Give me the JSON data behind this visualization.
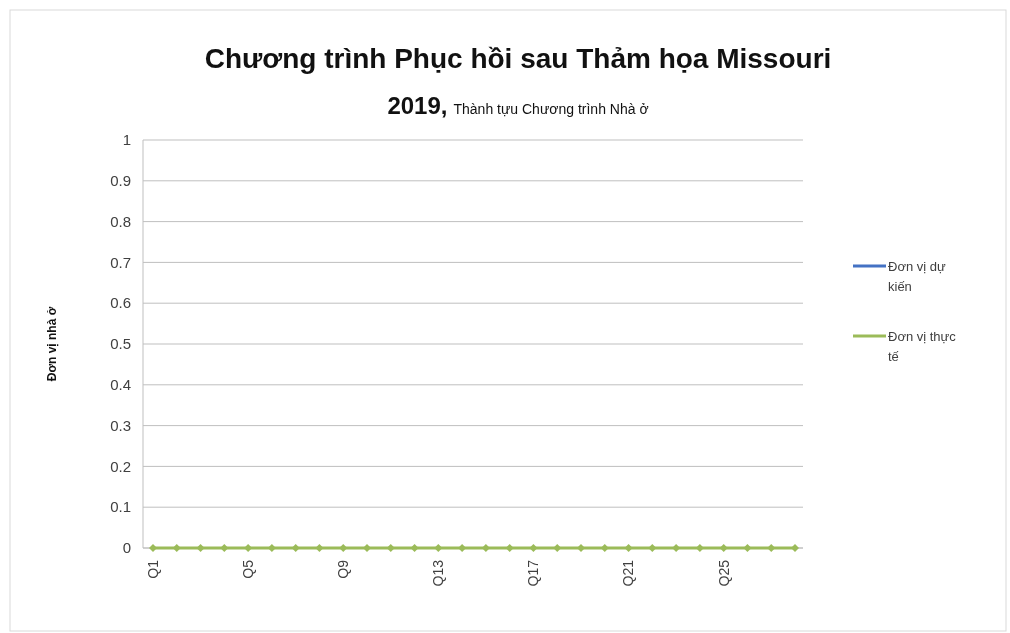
{
  "chart_data": {
    "type": "line",
    "title": "Chương trình Phục hồi sau Thảm họa Missouri 2019,",
    "subtitle": "Thành tựu Chương trình Nhà ở",
    "ylabel": "Đơn vị nhà ở",
    "categories": [
      "Q1",
      null,
      null,
      null,
      "Q5",
      null,
      null,
      null,
      "Q9",
      null,
      null,
      null,
      "Q13",
      null,
      null,
      null,
      "Q17",
      null,
      null,
      null,
      "Q21",
      null,
      null,
      null,
      "Q25",
      null,
      null,
      null
    ],
    "series": [
      {
        "name": "Đơn vị dự kiến",
        "color": "#4472c4",
        "values": [
          null,
          null,
          null,
          null,
          null,
          null,
          null,
          null,
          null,
          null,
          null,
          null,
          null,
          null,
          null,
          null,
          null,
          null,
          null,
          null,
          null,
          null,
          null,
          null,
          null,
          null,
          null,
          null
        ]
      },
      {
        "name": "Đơn vị thực tế",
        "color": "#9bbb59",
        "values": [
          0,
          0,
          0,
          0,
          0,
          0,
          0,
          0,
          0,
          0,
          0,
          0,
          0,
          0,
          0,
          0,
          0,
          0,
          0,
          0,
          0,
          0,
          0,
          0,
          0,
          0,
          0,
          0
        ]
      }
    ],
    "ylim": [
      0,
      1
    ],
    "yticks": [
      0,
      0.1,
      0.2,
      0.3,
      0.4,
      0.5,
      0.6,
      0.7,
      0.8,
      0.9,
      1
    ],
    "grid": "y",
    "legend": "right",
    "marker": "diamond",
    "line_style": "solid"
  }
}
